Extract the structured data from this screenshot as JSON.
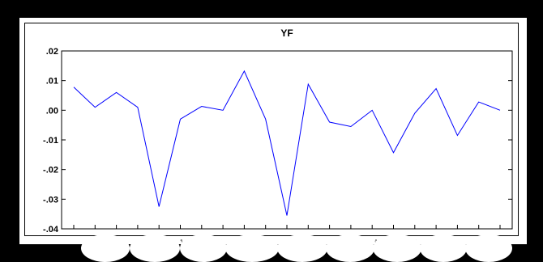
{
  "chart_data": {
    "type": "line",
    "title": "YF",
    "xlabel": "",
    "ylabel": "",
    "ylim": [
      -0.04,
      0.02
    ],
    "yticks": [
      ".02",
      ".01",
      ".00",
      "-.01",
      "-.02",
      "-.03",
      "-.04"
    ],
    "ytick_values": [
      0.02,
      0.01,
      0.0,
      -0.01,
      -0.02,
      -0.03,
      -0.04
    ],
    "xtick_labels": [
      "٨",
      "٥",
      "٩",
      "٢",
      "٧",
      "١",
      "٢",
      "٥",
      "٢",
      "٩",
      "٨"
    ],
    "grid": false,
    "legend": "none",
    "series": [
      {
        "color": "#0000ff",
        "values": [
          0.0078,
          0.001,
          0.006,
          0.001,
          -0.0325,
          -0.003,
          0.0013,
          0.0,
          0.0132,
          -0.003,
          -0.0355,
          0.0088,
          -0.004,
          -0.0055,
          0.0,
          -0.0143,
          -0.001,
          0.0073,
          -0.0085,
          0.0028,
          0.0
        ]
      }
    ]
  }
}
